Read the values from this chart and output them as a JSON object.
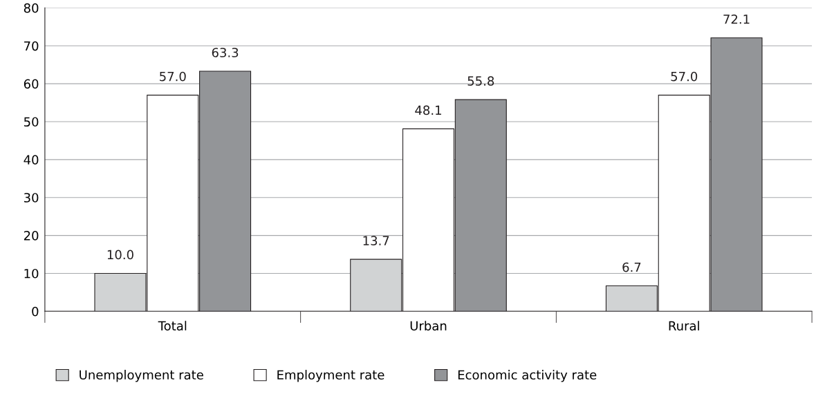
{
  "chart_data": {
    "type": "bar",
    "categories": [
      "Total",
      "Urban",
      "Rural"
    ],
    "series": [
      {
        "name": "Unemployment rate",
        "color": "#d1d3d4",
        "values": [
          10.0,
          13.7,
          6.7
        ],
        "value_labels": [
          "10.0",
          "13.7",
          "6.7"
        ]
      },
      {
        "name": "Employment rate",
        "color": "#ffffff",
        "values": [
          57.0,
          48.1,
          57.0
        ],
        "value_labels": [
          "57.0",
          "48.1",
          "57.0"
        ]
      },
      {
        "name": "Economic activity rate",
        "color": "#939598",
        "values": [
          63.3,
          55.8,
          72.1
        ],
        "value_labels": [
          "63.3",
          "55.8",
          "72.1"
        ]
      }
    ],
    "ylim": [
      0,
      80
    ],
    "yticks": [
      0,
      10,
      20,
      30,
      40,
      50,
      60,
      70,
      80
    ],
    "grid": "y",
    "legend": "bottom"
  }
}
